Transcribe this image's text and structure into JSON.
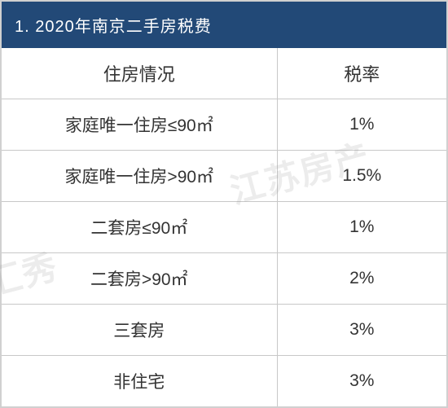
{
  "title": "1. 2020年南京二手房税费",
  "header": {
    "col1": "住房情况",
    "col2": "税率"
  },
  "rows": [
    {
      "situation": "家庭唯一住房≤90㎡",
      "rate": "1%"
    },
    {
      "situation": "家庭唯一住房>90㎡",
      "rate": "1.5%"
    },
    {
      "situation": "二套房≤90㎡",
      "rate": "1%"
    },
    {
      "situation": "二套房>90㎡",
      "rate": "2%"
    },
    {
      "situation": "三套房",
      "rate": "3%"
    },
    {
      "situation": "非住宅",
      "rate": "3%"
    }
  ],
  "watermarks": {
    "w1": "江苏房产",
    "w2": "新汇秀"
  },
  "colors": {
    "header_bg": "#224977",
    "header_text": "#ffffff",
    "border": "#c8c8c8",
    "cell_text": "#333333",
    "watermark": "rgba(150,150,150,0.18)"
  },
  "layout": {
    "left_col_pct": 62,
    "right_col_pct": 38,
    "title_fontsize": 20,
    "cell_fontsize": 21,
    "header_cell_fontsize": 22
  }
}
